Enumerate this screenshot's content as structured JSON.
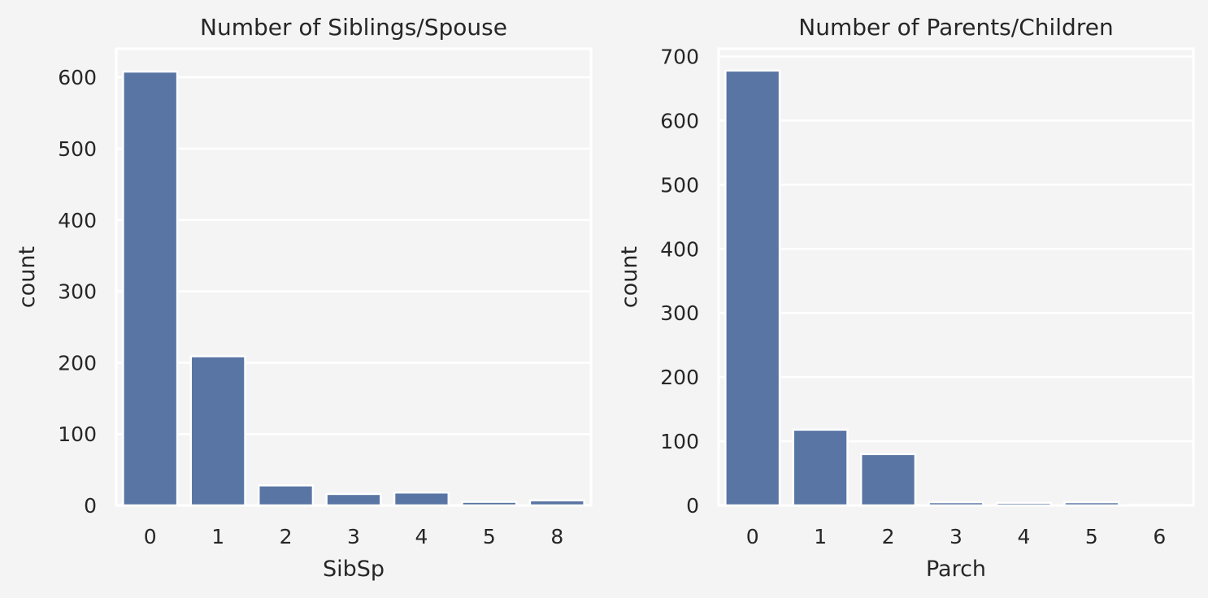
{
  "chart_data": [
    {
      "type": "bar",
      "title": "Number of Siblings/Spouse",
      "xlabel": "SibSp",
      "ylabel": "count",
      "categories": [
        "0",
        "1",
        "2",
        "3",
        "4",
        "5",
        "8"
      ],
      "values": [
        608,
        209,
        28,
        16,
        18,
        5,
        7
      ],
      "ylim": [
        0,
        640
      ],
      "yticks": [
        0,
        100,
        200,
        300,
        400,
        500,
        600
      ],
      "grid": true,
      "bar_color": "#5975a4"
    },
    {
      "type": "bar",
      "title": "Number of Parents/Children",
      "xlabel": "Parch",
      "ylabel": "count",
      "categories": [
        "0",
        "1",
        "2",
        "3",
        "4",
        "5",
        "6"
      ],
      "values": [
        678,
        118,
        80,
        5,
        4,
        5,
        1
      ],
      "ylim": [
        0,
        712
      ],
      "yticks": [
        0,
        100,
        200,
        300,
        400,
        500,
        600,
        700
      ],
      "grid": true,
      "bar_color": "#5975a4"
    }
  ]
}
